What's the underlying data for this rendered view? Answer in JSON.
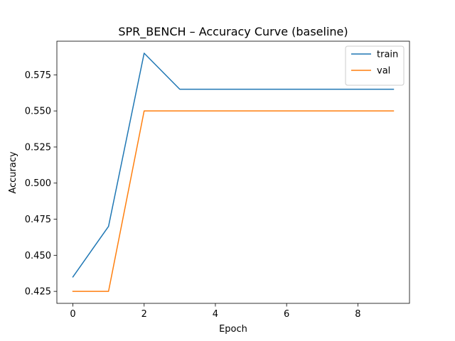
{
  "chart_data": {
    "type": "line",
    "title": "SPR_BENCH – Accuracy Curve (baseline)",
    "xlabel": "Epoch",
    "ylabel": "Accuracy",
    "xlim": [
      -0.45,
      9.45
    ],
    "ylim": [
      0.4167,
      0.5983
    ],
    "xticks": [
      0,
      2,
      4,
      6,
      8
    ],
    "xtick_labels": [
      "0",
      "2",
      "4",
      "6",
      "8"
    ],
    "yticks": [
      0.425,
      0.45,
      0.475,
      0.5,
      0.525,
      0.55,
      0.575
    ],
    "ytick_labels": [
      "0.425",
      "0.450",
      "0.475",
      "0.500",
      "0.525",
      "0.550",
      "0.575"
    ],
    "grid": false,
    "legend_position": "top-right",
    "x": [
      0,
      1,
      2,
      3,
      4,
      5,
      6,
      7,
      8,
      9
    ],
    "series": [
      {
        "name": "train",
        "color": "#1f77b4",
        "values": [
          0.435,
          0.47,
          0.59,
          0.565,
          0.565,
          0.565,
          0.565,
          0.565,
          0.565,
          0.565
        ]
      },
      {
        "name": "val",
        "color": "#ff7f0e",
        "values": [
          0.425,
          0.425,
          0.55,
          0.55,
          0.55,
          0.55,
          0.55,
          0.55,
          0.55,
          0.55
        ]
      }
    ]
  }
}
